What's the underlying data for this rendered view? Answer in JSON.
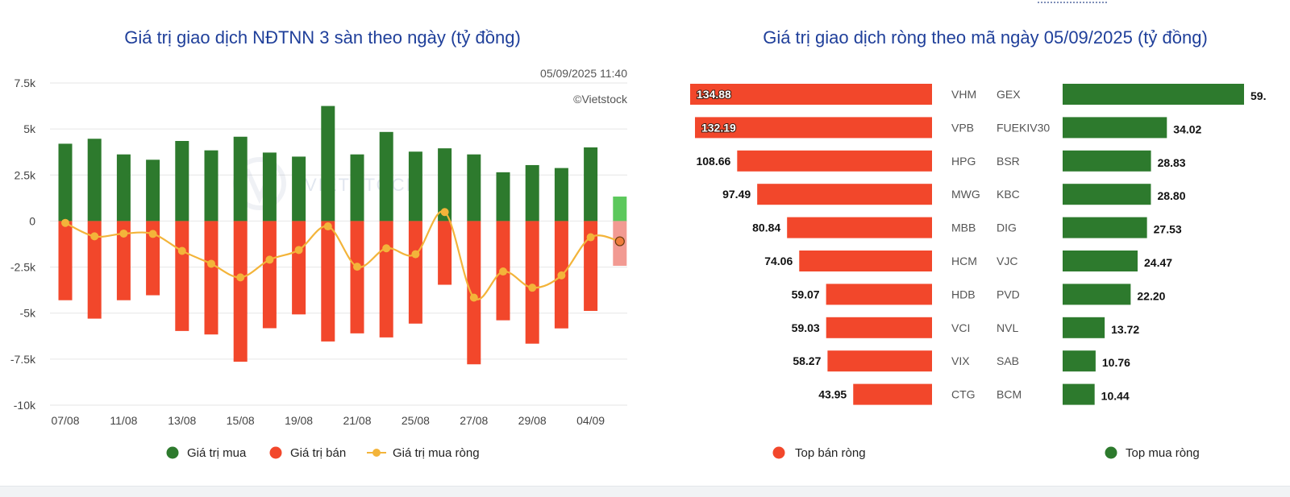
{
  "colors": {
    "buy": "#2d7a2d",
    "sell": "#f2472b",
    "net_line": "#f3b43a",
    "today_buy": "#5cc85c",
    "today_sell": "#f29a92",
    "title": "#1f3f9a",
    "grid": "#e6e6e6"
  },
  "chart_data": [
    {
      "type": "bar",
      "title": "Giá trị giao dịch NĐTNN 3 sàn theo ngày (tỷ đồng)",
      "timestamp": "05/09/2025 11:40",
      "watermark": "©Vietstock",
      "y_ticks": [
        "7.5k",
        "5k",
        "2.5k",
        "0",
        "-2.5k",
        "-5k",
        "-7.5k",
        "-10k"
      ],
      "y_tick_values": [
        7500,
        5000,
        2500,
        0,
        -2500,
        -5000,
        -7500,
        -10000
      ],
      "ylim": [
        -10000,
        7500
      ],
      "x_tick_labels": [
        "07/08",
        "11/08",
        "13/08",
        "15/08",
        "19/08",
        "21/08",
        "25/08",
        "27/08",
        "29/08",
        "04/09"
      ],
      "x_tick_positions": [
        0,
        2,
        4,
        6,
        8,
        10,
        12,
        14,
        16,
        18
      ],
      "grid": true,
      "legend_position": "bottom",
      "series": [
        {
          "name": "Giá trị mua",
          "values": [
            4200,
            4470,
            3620,
            3330,
            4350,
            3840,
            4580,
            3720,
            3500,
            6250,
            3620,
            4840,
            3770,
            3950,
            3620,
            2650,
            3040,
            2880,
            4000,
            1330
          ]
        },
        {
          "name": "Giá trị bán",
          "values": [
            -4300,
            -5300,
            -4300,
            -4030,
            -5970,
            -6160,
            -7640,
            -5820,
            -5070,
            -6540,
            -6100,
            -6320,
            -5570,
            -3460,
            -7780,
            -5390,
            -6660,
            -5830,
            -4880,
            -2430
          ]
        },
        {
          "name": "Giá trị mua ròng",
          "values": [
            -100,
            -830,
            -680,
            -700,
            -1620,
            -2320,
            -3060,
            -2100,
            -1570,
            -290,
            -2480,
            -1480,
            -1800,
            490,
            -4160,
            -2740,
            -3620,
            -2950,
            -880,
            -1100
          ]
        }
      ]
    },
    {
      "type": "bar",
      "title": "Giá trị giao dịch ròng theo mã ngày 05/09/2025 (tỷ đồng)",
      "legend_position": "bottom",
      "series": [
        {
          "name": "Top bán ròng",
          "categories": [
            "VHM",
            "VPB",
            "HPG",
            "MWG",
            "MBB",
            "HCM",
            "HDB",
            "VCI",
            "VIX",
            "CTG"
          ],
          "values": [
            134.88,
            132.19,
            108.66,
            97.49,
            80.84,
            74.06,
            59.07,
            59.03,
            58.27,
            43.95
          ],
          "labels": [
            "134.88",
            "132.19",
            "108.66",
            "97.49",
            "80.84",
            "74.06",
            "59.07",
            "59.03",
            "58.27",
            "43.95"
          ]
        },
        {
          "name": "Top mua ròng",
          "categories": [
            "GEX",
            "FUEKIV30",
            "BSR",
            "KBC",
            "DIG",
            "VJC",
            "PVD",
            "NVL",
            "SAB",
            "BCM"
          ],
          "values": [
            59.2,
            34.02,
            28.83,
            28.8,
            27.53,
            24.47,
            22.2,
            13.72,
            10.76,
            10.44
          ],
          "labels": [
            "59.",
            "34.02",
            "28.83",
            "28.80",
            "27.53",
            "24.47",
            "22.20",
            "13.72",
            "10.76",
            "10.44"
          ]
        }
      ]
    }
  ]
}
